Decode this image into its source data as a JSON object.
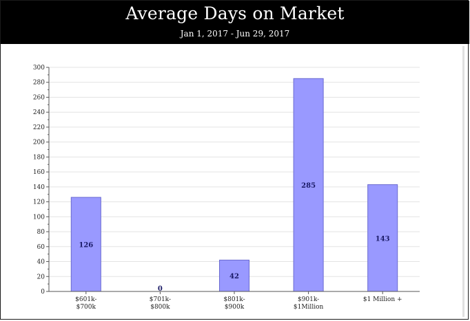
{
  "header": {
    "title": "Average Days on Market",
    "subtitle": "Jan 1, 2017 - Jun 29, 2017"
  },
  "colors": {
    "header_bg": "#000000",
    "header_text": "#ffffff",
    "bar_fill": "#9999ff",
    "bar_stroke": "#6a6ad0",
    "grid": "#e3e3e3",
    "axis": "#555555",
    "value_label": "#1a1a66"
  },
  "chart_data": {
    "type": "bar",
    "title": "Average Days on Market",
    "subtitle": "Jan 1, 2017 - Jun 29, 2017",
    "categories": [
      [
        "$601k-",
        "$700k"
      ],
      [
        "$701k-",
        "$800k"
      ],
      [
        "$801k-",
        "$900k"
      ],
      [
        "$901k-",
        "$1Million"
      ],
      [
        "$1 Million +"
      ]
    ],
    "values": [
      126,
      0,
      42,
      285,
      143
    ],
    "data_labels": [
      "126",
      "0",
      "42",
      "285",
      "143"
    ],
    "ylim": [
      0,
      300
    ],
    "yticks": [
      0,
      20,
      40,
      60,
      80,
      100,
      120,
      140,
      160,
      180,
      200,
      220,
      240,
      260,
      280,
      300
    ],
    "grid": true,
    "legend": "none",
    "xlabel": "",
    "ylabel": ""
  }
}
